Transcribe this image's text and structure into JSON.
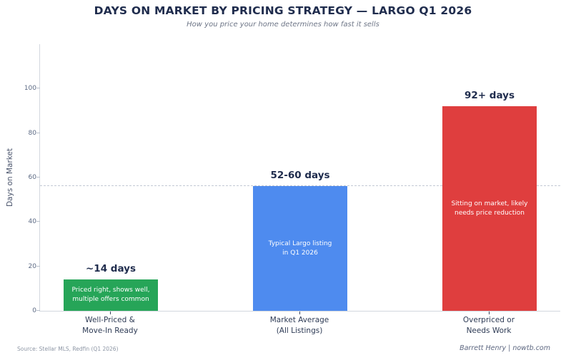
{
  "chart_data": {
    "type": "bar",
    "title": "DAYS ON MARKET BY PRICING STRATEGY — LARGO Q1 2026",
    "subtitle": "How you price your home determines how fast it sells",
    "ylabel": "Days on Market",
    "xlabel": "",
    "ylim": [
      0,
      120
    ],
    "yticks": [
      0,
      20,
      40,
      60,
      80,
      100
    ],
    "grid": false,
    "legend": false,
    "reference_line": {
      "value": 56,
      "style": "dashed",
      "color": "#c3c9d4"
    },
    "categories": [
      "Well-Priced &\nMove-In Ready",
      "Market Average\n(All Listings)",
      "Overpriced or\nNeeds Work"
    ],
    "values": [
      14,
      56,
      92
    ],
    "bars": [
      {
        "category": "Well-Priced &\nMove-In Ready",
        "value": 14,
        "value_label": "~14 days",
        "annotation": "Priced right, shows well,\nmultiple offers common",
        "color": "#26a558"
      },
      {
        "category": "Market Average\n(All Listings)",
        "value": 56,
        "value_label": "52-60 days",
        "annotation": "Typical Largo listing\nin Q1 2026",
        "color": "#4e8bef"
      },
      {
        "category": "Overpriced or\nNeeds Work",
        "value": 92,
        "value_label": "92+ days",
        "annotation": "Sitting on market, likely\nneeds price reduction",
        "color": "#df3e3e"
      }
    ]
  },
  "colors": {
    "title_navy": "#1f2c4d",
    "axis_text": "#5c6a84",
    "spine": "#d3d8df"
  },
  "footer": {
    "source": "Source: Stellar MLS, Redfin (Q1 2026)",
    "credit": "Barrett Henry | nowtb.com"
  }
}
